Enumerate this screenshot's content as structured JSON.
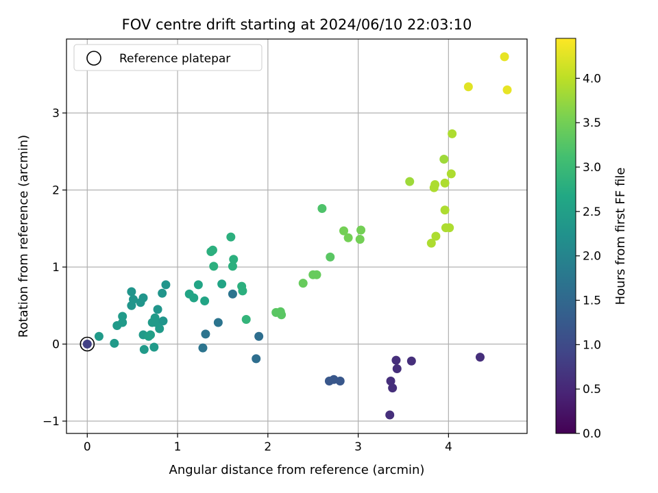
{
  "chart_data": {
    "type": "scatter",
    "title": "FOV centre drift starting at 2024/06/10 22:03:10",
    "xlabel": "Angular distance from reference (arcmin)",
    "ylabel": "Rotation from reference (arcmin)",
    "xlim": [
      -0.23,
      4.87
    ],
    "ylim": [
      -1.16,
      3.96
    ],
    "xticks": [
      0,
      1,
      2,
      3,
      4
    ],
    "yticks": [
      -1,
      0,
      1,
      2,
      3
    ],
    "grid": true,
    "legend": {
      "position": "top-left",
      "entries": [
        "Reference platepar"
      ]
    },
    "reference_point": {
      "x": 0,
      "y": 0,
      "label": "Reference platepar"
    },
    "colorbar": {
      "label": "Hours from first FF file",
      "range": [
        0.0,
        4.45
      ],
      "ticks": [
        "0.0",
        "0.5",
        "1.0",
        "1.5",
        "2.0",
        "2.5",
        "3.0",
        "3.5",
        "4.0"
      ],
      "colormap": "viridis"
    },
    "points": [
      {
        "x": 0.0,
        "y": 0.0,
        "c": 0.85
      },
      {
        "x": 0.13,
        "y": 0.1,
        "c": 2.4
      },
      {
        "x": 0.3,
        "y": 0.01,
        "c": 2.4
      },
      {
        "x": 0.33,
        "y": 0.24,
        "c": 2.4
      },
      {
        "x": 0.39,
        "y": 0.28,
        "c": 2.4
      },
      {
        "x": 0.39,
        "y": 0.36,
        "c": 2.4
      },
      {
        "x": 0.49,
        "y": 0.68,
        "c": 2.3
      },
      {
        "x": 0.49,
        "y": 0.5,
        "c": 2.3
      },
      {
        "x": 0.51,
        "y": 0.58,
        "c": 2.3
      },
      {
        "x": 0.59,
        "y": 0.54,
        "c": 2.3
      },
      {
        "x": 0.62,
        "y": 0.6,
        "c": 2.3
      },
      {
        "x": 0.62,
        "y": 0.12,
        "c": 2.4
      },
      {
        "x": 0.63,
        "y": -0.07,
        "c": 2.4
      },
      {
        "x": 0.68,
        "y": 0.1,
        "c": 2.5
      },
      {
        "x": 0.7,
        "y": 0.12,
        "c": 2.5
      },
      {
        "x": 0.72,
        "y": 0.28,
        "c": 2.4
      },
      {
        "x": 0.74,
        "y": -0.04,
        "c": 2.4
      },
      {
        "x": 0.75,
        "y": 0.34,
        "c": 2.4
      },
      {
        "x": 0.76,
        "y": 0.28,
        "c": 2.4
      },
      {
        "x": 0.78,
        "y": 0.45,
        "c": 2.3
      },
      {
        "x": 0.8,
        "y": 0.2,
        "c": 2.4
      },
      {
        "x": 0.83,
        "y": 0.66,
        "c": 2.3
      },
      {
        "x": 0.84,
        "y": 0.3,
        "c": 2.3
      },
      {
        "x": 0.87,
        "y": 0.77,
        "c": 2.3
      },
      {
        "x": 1.13,
        "y": 0.65,
        "c": 2.6
      },
      {
        "x": 1.18,
        "y": 0.6,
        "c": 2.6
      },
      {
        "x": 1.23,
        "y": 0.77,
        "c": 2.6
      },
      {
        "x": 1.28,
        "y": -0.05,
        "c": 1.7
      },
      {
        "x": 1.3,
        "y": 0.56,
        "c": 2.6
      },
      {
        "x": 1.31,
        "y": 0.13,
        "c": 1.7
      },
      {
        "x": 1.37,
        "y": 1.2,
        "c": 2.8
      },
      {
        "x": 1.39,
        "y": 1.22,
        "c": 2.8
      },
      {
        "x": 1.4,
        "y": 1.01,
        "c": 2.8
      },
      {
        "x": 1.45,
        "y": 0.28,
        "c": 1.7
      },
      {
        "x": 1.49,
        "y": 0.78,
        "c": 2.6
      },
      {
        "x": 1.59,
        "y": 1.39,
        "c": 2.8
      },
      {
        "x": 1.61,
        "y": 0.65,
        "c": 1.7
      },
      {
        "x": 1.61,
        "y": 1.01,
        "c": 2.8
      },
      {
        "x": 1.62,
        "y": 1.1,
        "c": 2.8
      },
      {
        "x": 1.71,
        "y": 0.75,
        "c": 2.8
      },
      {
        "x": 1.72,
        "y": 0.69,
        "c": 2.8
      },
      {
        "x": 1.76,
        "y": 0.32,
        "c": 2.9
      },
      {
        "x": 1.87,
        "y": -0.19,
        "c": 1.6
      },
      {
        "x": 1.9,
        "y": 0.1,
        "c": 1.6
      },
      {
        "x": 2.09,
        "y": 0.41,
        "c": 3.3
      },
      {
        "x": 2.14,
        "y": 0.42,
        "c": 3.3
      },
      {
        "x": 2.15,
        "y": 0.38,
        "c": 3.3
      },
      {
        "x": 2.39,
        "y": 0.79,
        "c": 3.4
      },
      {
        "x": 2.5,
        "y": 0.9,
        "c": 3.4
      },
      {
        "x": 2.54,
        "y": 0.9,
        "c": 3.4
      },
      {
        "x": 2.6,
        "y": 1.76,
        "c": 3.2
      },
      {
        "x": 2.68,
        "y": -0.48,
        "c": 1.2
      },
      {
        "x": 2.69,
        "y": 1.13,
        "c": 3.3
      },
      {
        "x": 2.73,
        "y": -0.46,
        "c": 1.2
      },
      {
        "x": 2.8,
        "y": -0.48,
        "c": 1.2
      },
      {
        "x": 2.84,
        "y": 1.47,
        "c": 3.5
      },
      {
        "x": 2.89,
        "y": 1.38,
        "c": 3.5
      },
      {
        "x": 3.02,
        "y": 1.36,
        "c": 3.5
      },
      {
        "x": 3.03,
        "y": 1.48,
        "c": 3.5
      },
      {
        "x": 3.35,
        "y": -0.92,
        "c": 0.6
      },
      {
        "x": 3.36,
        "y": -0.48,
        "c": 0.6
      },
      {
        "x": 3.38,
        "y": -0.57,
        "c": 0.6
      },
      {
        "x": 3.42,
        "y": -0.21,
        "c": 0.6
      },
      {
        "x": 3.43,
        "y": -0.32,
        "c": 0.6
      },
      {
        "x": 3.57,
        "y": 2.11,
        "c": 3.8
      },
      {
        "x": 3.59,
        "y": -0.22,
        "c": 0.6
      },
      {
        "x": 3.81,
        "y": 1.31,
        "c": 3.9
      },
      {
        "x": 3.84,
        "y": 2.03,
        "c": 3.9
      },
      {
        "x": 3.85,
        "y": 2.07,
        "c": 3.9
      },
      {
        "x": 3.86,
        "y": 1.4,
        "c": 3.9
      },
      {
        "x": 3.95,
        "y": 2.4,
        "c": 3.8
      },
      {
        "x": 3.96,
        "y": 2.09,
        "c": 3.9
      },
      {
        "x": 3.96,
        "y": 1.74,
        "c": 3.9
      },
      {
        "x": 3.97,
        "y": 1.51,
        "c": 3.9
      },
      {
        "x": 4.01,
        "y": 1.51,
        "c": 3.9
      },
      {
        "x": 4.03,
        "y": 2.21,
        "c": 3.9
      },
      {
        "x": 4.04,
        "y": 2.73,
        "c": 3.9
      },
      {
        "x": 4.22,
        "y": 3.34,
        "c": 4.25
      },
      {
        "x": 4.35,
        "y": -0.17,
        "c": 0.6
      },
      {
        "x": 4.62,
        "y": 3.73,
        "c": 4.3
      },
      {
        "x": 4.65,
        "y": 3.3,
        "c": 4.3
      }
    ]
  }
}
